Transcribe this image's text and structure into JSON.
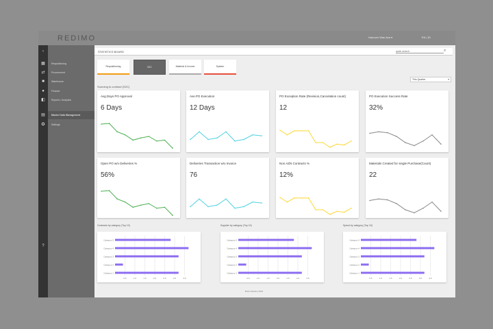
{
  "app": {
    "logo": "REDIMO",
    "user": "Hanover Wan Ava ▾",
    "lang": "EN  |  ID"
  },
  "sidebar": {
    "collapse_icon": "‹",
    "items": [
      {
        "label": "Requisitioning",
        "icon": "grid-icon"
      },
      {
        "label": "Procurement",
        "icon": "swap-icon"
      },
      {
        "label": "Warehouse",
        "icon": "box-icon"
      },
      {
        "label": "Finance",
        "icon": "globe-icon"
      },
      {
        "label": "Reports / Analytics",
        "icon": "chart-icon"
      },
      {
        "label": "Master Data Management",
        "icon": "database-icon",
        "active": true
      },
      {
        "label": "Settings",
        "icon": "gear-icon"
      }
    ],
    "help_icon": "?"
  },
  "header": {
    "title": "STATISTICS BOARD",
    "search_placeholder": "quick search"
  },
  "tabs": [
    {
      "label": "Requisitioning",
      "color": "#f39c12"
    },
    {
      "label": "S2C",
      "active": true
    },
    {
      "label": "Material & Invoice",
      "color": "#aaaaaa"
    },
    {
      "label": "System",
      "color": "#e74c3c"
    }
  ],
  "section": "Sourcing to contract (S2C)",
  "period": {
    "selected": "This Quarter"
  },
  "cards": [
    {
      "title": "Avg.Days PO Approval",
      "value": "6 Days",
      "color": "#4caf50",
      "series": [
        8,
        8.2,
        5.5,
        4.5,
        2.8,
        3.5,
        4,
        2.5,
        2.8,
        0.2
      ]
    },
    {
      "title": "Ave.PO Execution",
      "value": "12 Days",
      "color": "#4dd0e1",
      "series": [
        3,
        5.5,
        3,
        3.5,
        5.5,
        2.5,
        3,
        4.5,
        4.2
      ]
    },
    {
      "title": "PO Exception Rate (Revision,Cancelation count)",
      "value": "12",
      "color": "#fdd835",
      "series": [
        6,
        4.5,
        5.8,
        5.8,
        5.8,
        2,
        2,
        0.5,
        1.5,
        1.2,
        2.5
      ]
    },
    {
      "title": "PO Execution Success Rate",
      "value": "32%",
      "color": "#888888",
      "series": [
        5,
        5.5,
        5.2,
        4,
        2,
        1,
        2.5,
        4.5,
        1.5
      ]
    },
    {
      "title": "Open PO w/o Deliveries %",
      "value": "56%",
      "color": "#4caf50",
      "series": [
        8,
        8.2,
        5.5,
        4.5,
        2.8,
        3.5,
        4,
        2.5,
        2.8,
        0.2
      ]
    },
    {
      "title": "Deliveries Transaction w/o Invoice",
      "value": "76",
      "color": "#4dd0e1",
      "series": [
        3,
        5.5,
        3,
        3.5,
        5.5,
        2.5,
        3,
        4.5,
        4.2
      ]
    },
    {
      "title": "Non AZN Contracts %",
      "value": "12%",
      "color": "#fdd835",
      "series": [
        6,
        4.5,
        5.8,
        5.8,
        5.8,
        2,
        2,
        0.5,
        1.5,
        1.2,
        2.5
      ]
    },
    {
      "title": "Materials Created for single Purchase(Count)",
      "value": "22",
      "color": "#888888",
      "series": [
        5,
        5.5,
        5.2,
        4,
        2,
        1,
        2.5,
        4.5,
        1.5
      ]
    }
  ],
  "chart_data": [
    {
      "type": "bar",
      "title": "Contracts by category (Top 10)",
      "categories": [
        "Category 5",
        "Category 4",
        "Category 3",
        "Category 2",
        "Category 1"
      ],
      "values": [
        2.8,
        3.7,
        3.2,
        0.4,
        3.2
      ],
      "xticks": [
        "0.5",
        "1.0",
        "1.5",
        "2.0",
        "2.5",
        "3.0",
        "3.5"
      ],
      "xlim": [
        0,
        4
      ],
      "color": "#8c6cf0"
    },
    {
      "type": "bar",
      "title": "Supplier by category (Top 10)",
      "categories": [
        "Category 5",
        "Category 4",
        "Category 3",
        "Category 2",
        "Category 1"
      ],
      "values": [
        2.8,
        3.7,
        3.2,
        0.4,
        3.2
      ],
      "xticks": [
        "0.5",
        "1.0",
        "1.5",
        "2.0",
        "2.5",
        "3.0",
        "3.5"
      ],
      "xlim": [
        0,
        4
      ],
      "color": "#8c6cf0"
    },
    {
      "type": "bar",
      "title": "Spend by category (Top 10)",
      "categories": [
        "Category 5",
        "Category 4",
        "Category 3",
        "Category 2",
        "Category 1"
      ],
      "values": [
        2.8,
        3.7,
        3.2,
        0.4,
        3.2
      ],
      "xticks": [
        "0.5",
        "1.0",
        "1.5",
        "2.0",
        "2.5",
        "3.0",
        "3.5"
      ],
      "xlim": [
        0,
        4
      ],
      "color": "#8c6cf0"
    }
  ],
  "footer": "Burst Solution 2021"
}
